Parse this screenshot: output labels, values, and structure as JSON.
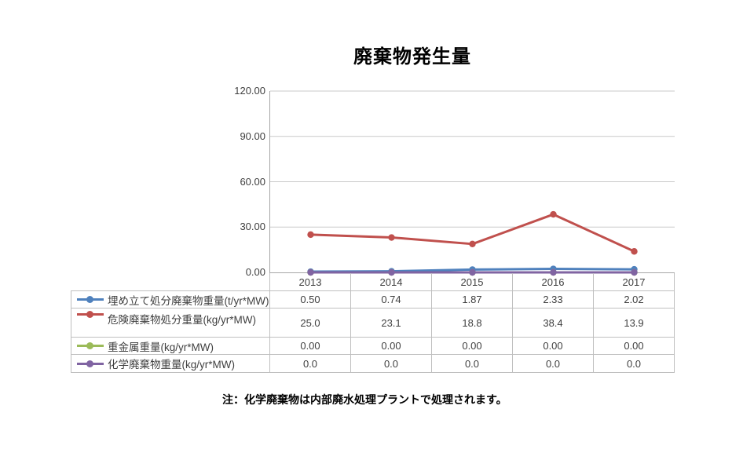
{
  "title": "廃棄物発生量",
  "note": "注：化学廃棄物は内部廃水処理プラントで処理されます。",
  "chart_data": {
    "type": "line",
    "title": "廃棄物発生量",
    "categories": [
      "2013",
      "2014",
      "2015",
      "2016",
      "2017"
    ],
    "series": [
      {
        "name": "埋め立て処分廃棄物重量(t/yr*MW)",
        "color": "#4F81BD",
        "values": [
          0.5,
          0.74,
          1.87,
          2.33,
          2.02
        ],
        "display": [
          "0.50",
          "0.74",
          "1.87",
          "2.33",
          "2.02"
        ]
      },
      {
        "name": "危険廃棄物処分重量(kg/yr*MW)",
        "color": "#C0504D",
        "values": [
          25.0,
          23.1,
          18.8,
          38.4,
          13.9
        ],
        "display": [
          "25.0",
          "23.1",
          "18.8",
          "38.4",
          "13.9"
        ]
      },
      {
        "name": "重金属重量(kg/yr*MW)",
        "color": "#9BBB59",
        "values": [
          0,
          0,
          0,
          0,
          0
        ],
        "display": [
          "0.00",
          "0.00",
          "0.00",
          "0.00",
          "0.00"
        ]
      },
      {
        "name": "化学廃棄物重量(kg/yr*MW)",
        "color": "#8064A2",
        "values": [
          0,
          0,
          0,
          0,
          0
        ],
        "display": [
          "0.0",
          "0.0",
          "0.0",
          "0.0",
          "0.0"
        ]
      }
    ],
    "ylim": [
      0,
      120
    ],
    "yticks": [
      "120.00",
      "90.00",
      "60.00",
      "30.00",
      "0.00"
    ],
    "ytick_values": [
      120,
      90,
      60,
      30,
      0
    ],
    "xlabel": "",
    "ylabel": "",
    "grid": true,
    "legend_position": "data-table-left",
    "marker": "circle",
    "gridline_color": "#c9c9c9",
    "axis_color": "#a6a6a6",
    "table_border_color": "#bfbfbf"
  }
}
